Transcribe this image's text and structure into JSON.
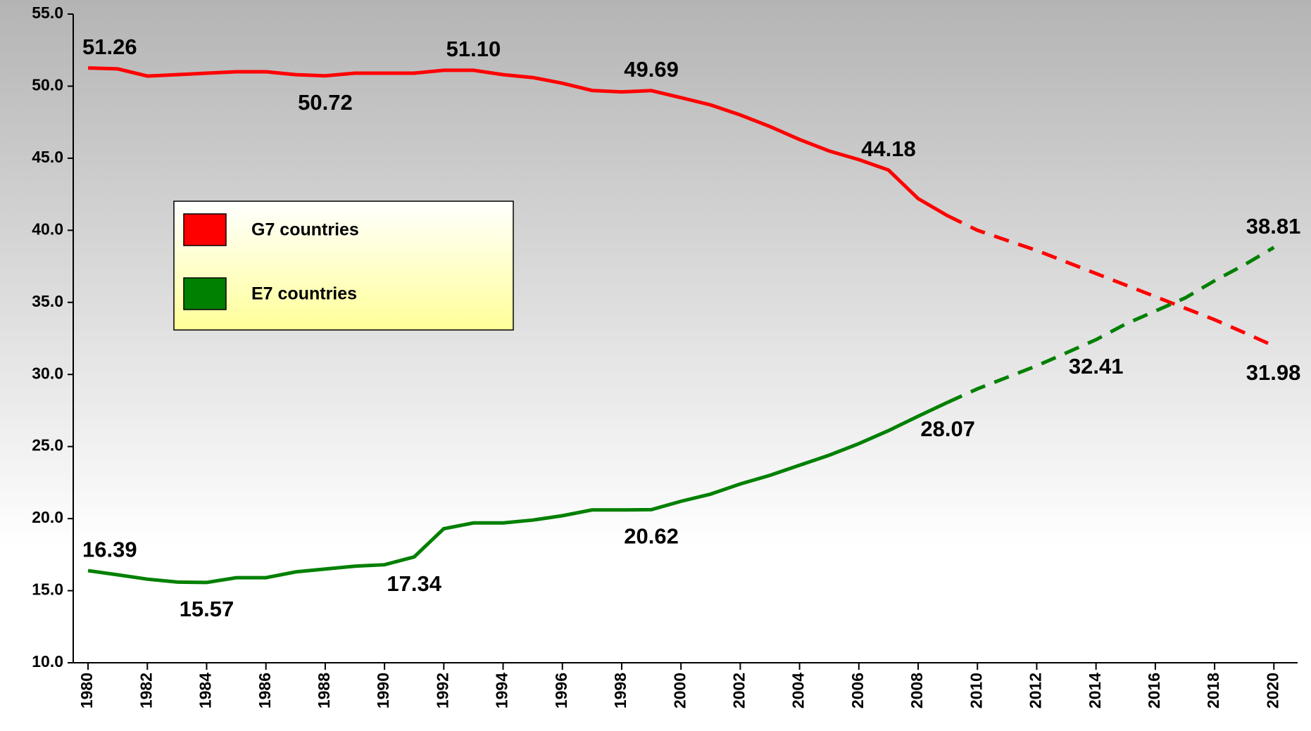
{
  "chart_data": {
    "type": "line",
    "x": [
      1980,
      1981,
      1982,
      1983,
      1984,
      1985,
      1986,
      1987,
      1988,
      1989,
      1990,
      1991,
      1992,
      1993,
      1994,
      1995,
      1996,
      1997,
      1998,
      1999,
      2000,
      2001,
      2002,
      2003,
      2004,
      2005,
      2006,
      2007,
      2008,
      2009,
      2010,
      2011,
      2012,
      2013,
      2014,
      2015,
      2016,
      2017,
      2018,
      2019,
      2020
    ],
    "series": [
      {
        "name": "G7 countries",
        "color": "#ff0000",
        "values": [
          51.26,
          51.2,
          50.7,
          50.8,
          50.9,
          51.0,
          51.0,
          50.8,
          50.72,
          50.9,
          50.9,
          50.9,
          51.1,
          51.1,
          50.8,
          50.6,
          50.2,
          49.7,
          49.6,
          49.69,
          49.2,
          48.7,
          48.0,
          47.2,
          46.3,
          45.5,
          44.9,
          44.18,
          42.2,
          41.0,
          40.0,
          39.3,
          38.6,
          37.8,
          37.0,
          36.2,
          35.4,
          34.6,
          33.8,
          32.9,
          31.98
        ],
        "value_labels": [
          "51.26",
          null,
          null,
          null,
          null,
          null,
          null,
          null,
          "50.72",
          null,
          null,
          null,
          null,
          "51.10",
          null,
          null,
          null,
          null,
          null,
          "49.69",
          null,
          null,
          null,
          null,
          null,
          null,
          null,
          "44.18",
          null,
          null,
          null,
          null,
          null,
          null,
          null,
          null,
          null,
          null,
          null,
          null,
          "31.98"
        ]
      },
      {
        "name": "E7 countries",
        "color": "#008000",
        "values": [
          16.39,
          16.1,
          15.8,
          15.6,
          15.57,
          15.9,
          15.9,
          16.3,
          16.5,
          16.7,
          16.8,
          17.34,
          19.3,
          19.7,
          19.7,
          19.9,
          20.2,
          20.6,
          20.6,
          20.62,
          21.2,
          21.7,
          22.4,
          23.0,
          23.7,
          24.4,
          25.2,
          26.1,
          27.1,
          28.07,
          29.0,
          29.8,
          30.6,
          31.5,
          32.41,
          33.5,
          34.4,
          35.3,
          36.5,
          37.6,
          38.81
        ],
        "value_labels": [
          "16.39",
          null,
          null,
          null,
          "15.57",
          null,
          null,
          null,
          null,
          null,
          null,
          "17.34",
          null,
          null,
          null,
          null,
          null,
          null,
          null,
          "20.62",
          null,
          null,
          null,
          null,
          null,
          null,
          null,
          null,
          null,
          "28.07",
          null,
          null,
          null,
          null,
          "32.41",
          null,
          null,
          null,
          null,
          null,
          "38.81"
        ]
      }
    ],
    "projection_start": 2009,
    "xlim": [
      1979.5,
      2020.8
    ],
    "xticks": [
      1980,
      1982,
      1984,
      1986,
      1988,
      1990,
      1992,
      1994,
      1996,
      1998,
      2000,
      2002,
      2004,
      2006,
      2008,
      2010,
      2012,
      2014,
      2016,
      2018,
      2020
    ],
    "ylim": [
      10,
      55
    ],
    "yticks": [
      {
        "value": 10,
        "label": "10.0"
      },
      {
        "value": 15,
        "label": "15.0"
      },
      {
        "value": 20,
        "label": "20.0"
      },
      {
        "value": 25,
        "label": "25.0"
      },
      {
        "value": 30,
        "label": "30.0"
      },
      {
        "value": 35,
        "label": "35.0"
      },
      {
        "value": 40,
        "label": "40.0"
      },
      {
        "value": 45,
        "label": "45.0"
      },
      {
        "value": 50,
        "label": "50.0"
      },
      {
        "value": 55,
        "label": "55.0"
      }
    ]
  }
}
